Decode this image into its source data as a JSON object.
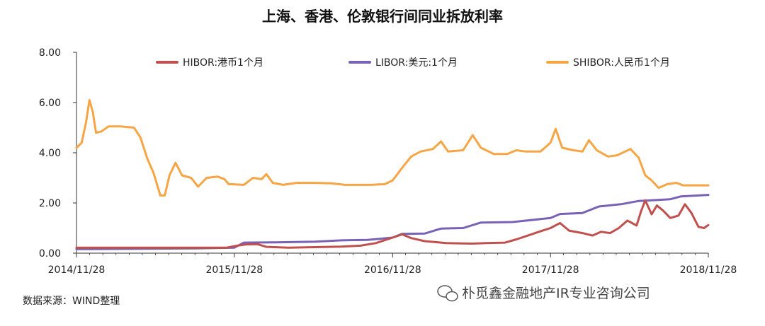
{
  "chart_data": {
    "type": "line",
    "title": "上海、香港、伦敦银行间同业拆放利率",
    "xlabel": "",
    "ylabel": "",
    "ylim": [
      0,
      8
    ],
    "yticks": [
      "0.00",
      "2.00",
      "4.00",
      "6.00",
      "8.00"
    ],
    "xticks": [
      "2014/11/28",
      "2015/11/28",
      "2016/11/28",
      "2017/11/28",
      "2018/11/28"
    ],
    "x_range": [
      "2014-11-28",
      "2018-11-28"
    ],
    "grid": false,
    "legend_position": "top",
    "series": [
      {
        "name": "HIBOR:港币1个月",
        "color": "#c0504d",
        "points": [
          [
            "2014-11-28",
            0.22
          ],
          [
            "2015-03-01",
            0.22
          ],
          [
            "2015-06-01",
            0.22
          ],
          [
            "2015-09-01",
            0.22
          ],
          [
            "2015-11-10",
            0.22
          ],
          [
            "2015-12-05",
            0.3
          ],
          [
            "2015-12-25",
            0.35
          ],
          [
            "2016-01-20",
            0.36
          ],
          [
            "2016-02-10",
            0.25
          ],
          [
            "2016-04-01",
            0.22
          ],
          [
            "2016-06-01",
            0.24
          ],
          [
            "2016-08-01",
            0.26
          ],
          [
            "2016-09-15",
            0.3
          ],
          [
            "2016-10-20",
            0.4
          ],
          [
            "2016-11-28",
            0.62
          ],
          [
            "2016-12-20",
            0.75
          ],
          [
            "2017-01-10",
            0.6
          ],
          [
            "2017-02-10",
            0.48
          ],
          [
            "2017-04-01",
            0.4
          ],
          [
            "2017-06-01",
            0.38
          ],
          [
            "2017-07-01",
            0.4
          ],
          [
            "2017-08-15",
            0.42
          ],
          [
            "2017-09-10",
            0.55
          ],
          [
            "2017-10-10",
            0.72
          ],
          [
            "2017-11-01",
            0.85
          ],
          [
            "2017-11-28",
            1.0
          ],
          [
            "2017-12-20",
            1.2
          ],
          [
            "2018-01-10",
            0.9
          ],
          [
            "2018-02-10",
            0.8
          ],
          [
            "2018-03-05",
            0.7
          ],
          [
            "2018-03-25",
            0.85
          ],
          [
            "2018-04-15",
            0.8
          ],
          [
            "2018-05-05",
            1.0
          ],
          [
            "2018-05-25",
            1.3
          ],
          [
            "2018-06-15",
            1.1
          ],
          [
            "2018-06-25",
            1.65
          ],
          [
            "2018-07-05",
            2.1
          ],
          [
            "2018-07-20",
            1.55
          ],
          [
            "2018-08-01",
            1.9
          ],
          [
            "2018-08-15",
            1.7
          ],
          [
            "2018-09-01",
            1.4
          ],
          [
            "2018-09-20",
            1.5
          ],
          [
            "2018-10-05",
            1.95
          ],
          [
            "2018-10-20",
            1.6
          ],
          [
            "2018-11-05",
            1.05
          ],
          [
            "2018-11-18",
            1.0
          ],
          [
            "2018-11-28",
            1.12
          ]
        ]
      },
      {
        "name": "LIBOR:美元:1个月",
        "color": "#7961b6",
        "points": [
          [
            "2014-11-28",
            0.16
          ],
          [
            "2015-03-01",
            0.17
          ],
          [
            "2015-06-01",
            0.18
          ],
          [
            "2015-09-01",
            0.19
          ],
          [
            "2015-11-28",
            0.22
          ],
          [
            "2015-12-20",
            0.42
          ],
          [
            "2016-03-01",
            0.43
          ],
          [
            "2016-06-01",
            0.46
          ],
          [
            "2016-08-01",
            0.51
          ],
          [
            "2016-10-01",
            0.53
          ],
          [
            "2016-11-28",
            0.62
          ],
          [
            "2016-12-20",
            0.77
          ],
          [
            "2017-02-10",
            0.78
          ],
          [
            "2017-03-20",
            0.98
          ],
          [
            "2017-05-10",
            1.0
          ],
          [
            "2017-06-20",
            1.22
          ],
          [
            "2017-09-01",
            1.24
          ],
          [
            "2017-11-28",
            1.4
          ],
          [
            "2017-12-20",
            1.56
          ],
          [
            "2018-02-10",
            1.6
          ],
          [
            "2018-03-20",
            1.86
          ],
          [
            "2018-05-10",
            1.95
          ],
          [
            "2018-06-20",
            2.08
          ],
          [
            "2018-09-01",
            2.15
          ],
          [
            "2018-09-25",
            2.26
          ],
          [
            "2018-11-28",
            2.32
          ]
        ]
      },
      {
        "name": "SHIBOR:人民币1个月",
        "color": "#f7a544",
        "points": [
          [
            "2014-11-28",
            4.2
          ],
          [
            "2014-12-10",
            4.4
          ],
          [
            "2014-12-20",
            5.2
          ],
          [
            "2014-12-28",
            6.1
          ],
          [
            "2015-01-05",
            5.6
          ],
          [
            "2015-01-12",
            4.8
          ],
          [
            "2015-01-25",
            4.85
          ],
          [
            "2015-02-10",
            5.05
          ],
          [
            "2015-03-10",
            5.05
          ],
          [
            "2015-04-10",
            5.0
          ],
          [
            "2015-04-25",
            4.6
          ],
          [
            "2015-05-10",
            3.8
          ],
          [
            "2015-05-25",
            3.2
          ],
          [
            "2015-06-10",
            2.3
          ],
          [
            "2015-06-20",
            2.3
          ],
          [
            "2015-07-01",
            3.1
          ],
          [
            "2015-07-15",
            3.6
          ],
          [
            "2015-07-30",
            3.1
          ],
          [
            "2015-08-20",
            3.0
          ],
          [
            "2015-09-05",
            2.65
          ],
          [
            "2015-09-25",
            3.0
          ],
          [
            "2015-10-20",
            3.05
          ],
          [
            "2015-11-05",
            2.95
          ],
          [
            "2015-11-15",
            2.75
          ],
          [
            "2015-12-20",
            2.72
          ],
          [
            "2016-01-10",
            3.0
          ],
          [
            "2016-01-30",
            2.95
          ],
          [
            "2016-02-10",
            3.15
          ],
          [
            "2016-02-25",
            2.8
          ],
          [
            "2016-03-20",
            2.72
          ],
          [
            "2016-04-20",
            2.8
          ],
          [
            "2016-06-01",
            2.8
          ],
          [
            "2016-07-10",
            2.78
          ],
          [
            "2016-08-10",
            2.72
          ],
          [
            "2016-09-10",
            2.72
          ],
          [
            "2016-10-10",
            2.72
          ],
          [
            "2016-11-10",
            2.75
          ],
          [
            "2016-11-28",
            2.9
          ],
          [
            "2016-12-20",
            3.4
          ],
          [
            "2017-01-10",
            3.85
          ],
          [
            "2017-02-01",
            4.05
          ],
          [
            "2017-03-01",
            4.15
          ],
          [
            "2017-03-20",
            4.45
          ],
          [
            "2017-04-05",
            4.05
          ],
          [
            "2017-05-10",
            4.1
          ],
          [
            "2017-06-01",
            4.7
          ],
          [
            "2017-06-20",
            4.2
          ],
          [
            "2017-07-20",
            3.95
          ],
          [
            "2017-08-20",
            3.95
          ],
          [
            "2017-09-10",
            4.1
          ],
          [
            "2017-10-01",
            4.05
          ],
          [
            "2017-11-05",
            4.05
          ],
          [
            "2017-11-28",
            4.4
          ],
          [
            "2017-12-10",
            4.95
          ],
          [
            "2017-12-25",
            4.2
          ],
          [
            "2018-01-20",
            4.1
          ],
          [
            "2018-02-10",
            4.05
          ],
          [
            "2018-02-25",
            4.5
          ],
          [
            "2018-03-15",
            4.1
          ],
          [
            "2018-04-10",
            3.85
          ],
          [
            "2018-05-01",
            3.9
          ],
          [
            "2018-06-01",
            4.15
          ],
          [
            "2018-06-20",
            3.8
          ],
          [
            "2018-07-05",
            3.1
          ],
          [
            "2018-07-20",
            2.9
          ],
          [
            "2018-08-05",
            2.6
          ],
          [
            "2018-08-25",
            2.75
          ],
          [
            "2018-09-15",
            2.8
          ],
          [
            "2018-10-01",
            2.7
          ],
          [
            "2018-10-25",
            2.7
          ],
          [
            "2018-11-28",
            2.7
          ]
        ]
      }
    ]
  },
  "source_note": "数据来源：WIND整理",
  "watermark": "朴觅鑫金融地产IR专业咨询公司"
}
